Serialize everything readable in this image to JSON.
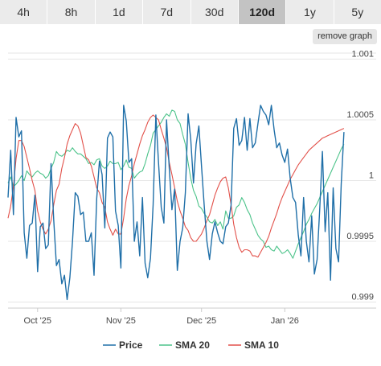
{
  "ranges": {
    "tabs": [
      "4h",
      "8h",
      "1d",
      "7d",
      "30d",
      "120d",
      "1y",
      "5y"
    ],
    "selected": "120d"
  },
  "remove_graph_label": "remove graph",
  "chart_data": {
    "type": "line",
    "title": "",
    "xlabel": "",
    "ylabel": "",
    "x_range": [
      "2025-09-20",
      "2026-02-04"
    ],
    "xticks": [
      {
        "date": "2025-10-01",
        "label": "Oct '25"
      },
      {
        "date": "2025-11-01",
        "label": "Nov '25"
      },
      {
        "date": "2025-12-01",
        "label": "Dec '25"
      },
      {
        "date": "2026-01-01",
        "label": "Jan '26"
      }
    ],
    "ylim": [
      0.99895,
      1.00105
    ],
    "yticks": [
      {
        "value": 1.001,
        "label": "1.001"
      },
      {
        "value": 1.0005,
        "label": "1.0005"
      },
      {
        "value": 1.0,
        "label": "1"
      },
      {
        "value": 0.9995,
        "label": "0.9995"
      },
      {
        "value": 0.999,
        "label": "0.999"
      }
    ],
    "grid": true,
    "legend_position": "bottom",
    "series": [
      {
        "name": "Price",
        "color": "#1f6fa8",
        "start": "2025-09-20",
        "step_days": 1,
        "values": [
          0.99986,
          1.00025,
          0.99972,
          1.00052,
          1.00036,
          1.00041,
          0.99957,
          0.99936,
          0.99963,
          0.99965,
          0.99988,
          0.99925,
          0.99962,
          0.99965,
          0.99944,
          0.99947,
          1.00014,
          0.99968,
          0.9993,
          0.99935,
          0.99915,
          0.99922,
          0.99902,
          0.9992,
          0.9995,
          0.9999,
          0.99987,
          0.99972,
          0.99974,
          0.9995,
          0.9995,
          0.99957,
          0.99922,
          0.99985,
          1.00016,
          1.00005,
          0.99961,
          1.00035,
          1.0004,
          1.00036,
          0.99975,
          0.99963,
          0.99928,
          1.00062,
          1.00049,
          1.00015,
          1.00018,
          0.9995,
          0.99966,
          0.99938,
          0.99986,
          0.99932,
          0.9992,
          0.99936,
          0.9998,
          1.00054,
          1.00015,
          0.99978,
          0.99965,
          1.0005,
          1.0001,
          0.99976,
          0.99993,
          0.99926,
          0.9995,
          0.99961,
          0.9999,
          1.00055,
          1.00034,
          0.99998,
          1.0003,
          1.00045,
          1.00012,
          0.9998,
          0.9995,
          0.99935,
          0.99956,
          0.99966,
          0.99957,
          0.9995,
          0.99948,
          0.99962,
          0.99965,
          0.9998,
          1.00043,
          1.00051,
          1.00029,
          1.00033,
          1.00052,
          1.00025,
          1.00051,
          1.00027,
          1.00031,
          1.00047,
          1.00062,
          1.00057,
          1.00054,
          1.00046,
          1.00062,
          1.00042,
          1.00027,
          1.00031,
          1.00021,
          1.00015,
          1.00026,
          1.00002,
          0.99986,
          0.99982,
          0.99955,
          0.99938,
          0.99986,
          0.9995,
          0.99933,
          0.99971,
          0.99923,
          0.99935,
          0.99977,
          1.00024,
          0.99958,
          0.9999,
          0.99918,
          0.99994,
          0.99944,
          0.99933,
          0.99997,
          1.0004
        ]
      },
      {
        "name": "SMA 20",
        "color": "#4cc38a",
        "start": "2025-09-20",
        "step_days": 1,
        "values": [
          0.99998,
          1.00003,
          0.99995,
          0.99997,
          1.0,
          1.00004,
          1.0,
          1.00008,
          1.00005,
          1.00003,
          1.00006,
          1.00008,
          1.00006,
          1.00005,
          1.00002,
          1.00004,
          1.0001,
          1.00015,
          1.00024,
          1.00021,
          1.0002,
          1.00022,
          1.00025,
          1.00024,
          1.00027,
          1.00024,
          1.00022,
          1.00022,
          1.0002,
          1.00018,
          1.00014,
          1.00015,
          1.00013,
          1.00017,
          1.00018,
          1.00012,
          1.0001,
          1.00012,
          1.00016,
          1.00014,
          1.00014,
          1.00015,
          1.00009,
          1.00012,
          1.00017,
          1.00011,
          1.0001,
          1.00002,
          1.00005,
          1.00007,
          1.00008,
          1.00014,
          1.00022,
          1.00029,
          1.00039,
          1.00042,
          1.00045,
          1.00048,
          1.00052,
          1.00055,
          1.00053,
          1.00058,
          1.00057,
          1.0005,
          1.00047,
          1.00038,
          1.0003,
          1.00015,
          1.00002,
          0.99992,
          0.99987,
          0.99979,
          0.99977,
          0.99973,
          0.9997,
          0.99966,
          0.99965,
          0.99968,
          0.99963,
          0.99966,
          0.9996,
          0.99975,
          0.99969,
          0.99969,
          0.99971,
          0.99978,
          0.9998,
          0.99986,
          0.99982,
          0.99976,
          0.99972,
          0.99965,
          0.9996,
          0.99955,
          0.99952,
          0.9995,
          0.99945,
          0.99946,
          0.99943,
          0.99942,
          0.99946,
          0.99943,
          0.9994,
          0.99941,
          0.99943,
          0.9994,
          0.99936,
          0.99942,
          0.99948,
          0.99953,
          0.99958,
          0.99964,
          0.99968,
          0.99973,
          0.99977,
          0.99981,
          0.99986,
          0.99991,
          0.99996,
          1.00001,
          1.00006,
          1.00011,
          1.00016,
          1.00021,
          1.00026,
          1.0003
        ]
      },
      {
        "name": "SMA 10",
        "color": "#e2514a",
        "start": "2025-09-20",
        "step_days": 1,
        "values": [
          0.99969,
          0.99979,
          0.99995,
          1.00018,
          1.00033,
          1.00033,
          1.00028,
          1.00019,
          1.0001,
          1.0,
          0.99992,
          0.99975,
          0.99966,
          0.9996,
          0.99956,
          0.9996,
          0.99967,
          0.9998,
          0.99992,
          0.99997,
          1.0001,
          1.00019,
          1.0003,
          1.00037,
          1.00042,
          1.00047,
          1.00045,
          1.00039,
          1.00029,
          1.00019,
          1.00017,
          1.00012,
          1.00003,
          0.99994,
          0.9999,
          0.99982,
          0.99978,
          0.99966,
          0.9996,
          0.99955,
          0.9996,
          0.99956,
          0.99956,
          0.99969,
          0.99985,
          0.99996,
          1.00004,
          1.00014,
          1.00022,
          1.0003,
          1.00037,
          1.00042,
          1.00048,
          1.00052,
          1.00054,
          1.00052,
          1.0005,
          1.00042,
          1.00035,
          1.00027,
          1.00015,
          1.00005,
          0.99994,
          0.99983,
          0.99975,
          0.99969,
          0.99962,
          0.99959,
          0.99953,
          0.9995,
          0.9995,
          0.99953,
          0.99956,
          0.99961,
          0.99967,
          0.99972,
          0.9998,
          0.99988,
          0.99994,
          0.99999,
          1.00002,
          1.00003,
          0.99994,
          0.9998,
          0.99964,
          0.99953,
          0.99945,
          0.99941,
          0.99943,
          0.99943,
          0.99942,
          0.99938,
          0.99938,
          0.99937,
          0.99941,
          0.99945,
          0.99949,
          0.99954,
          0.99961,
          0.99967,
          0.99973,
          0.9998,
          0.99986,
          0.99991,
          0.99996,
          1.00001,
          1.00005,
          1.00009,
          1.00013,
          1.00016,
          1.00019,
          1.00022,
          1.00025,
          1.00027,
          1.00029,
          1.00031,
          1.00033,
          1.00035,
          1.00036,
          1.00037,
          1.00038,
          1.00039,
          1.0004,
          1.00041,
          1.00042,
          1.00043
        ]
      }
    ]
  }
}
